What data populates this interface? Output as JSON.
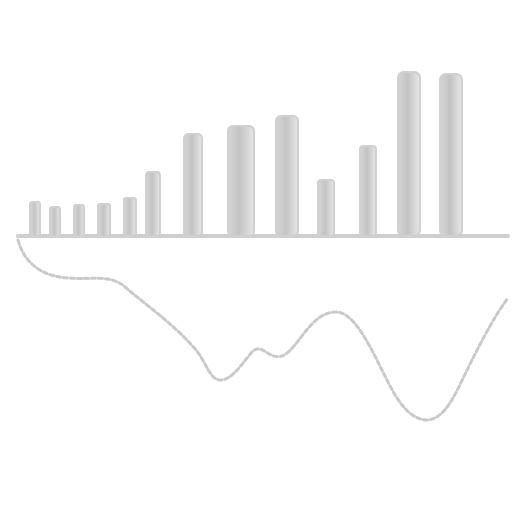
{
  "image": {
    "background": "#ffffff",
    "stroke_color": "#c8c8c8",
    "bar_outline": "#d2d2d2",
    "bar_fill": "#c6c6c6",
    "icon": "waveform-skyline-graphic"
  }
}
